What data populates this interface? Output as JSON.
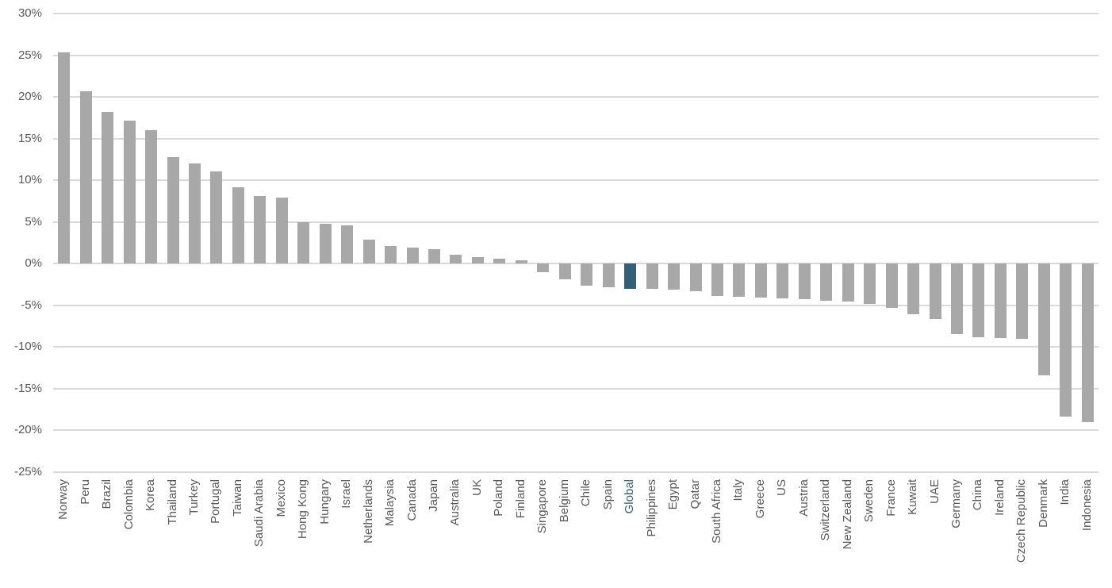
{
  "chart_data": {
    "type": "bar",
    "title": "",
    "xlabel": "",
    "ylabel": "",
    "categories": [
      "Norway",
      "Peru",
      "Brazil",
      "Colombia",
      "Korea",
      "Thailand",
      "Turkey",
      "Portugal",
      "Taiwan",
      "Saudi Arabia",
      "Mexico",
      "Hong Kong",
      "Hungary",
      "Israel",
      "Netherlands",
      "Malaysia",
      "Canada",
      "Japan",
      "Australia",
      "UK",
      "Poland",
      "Finland",
      "Singapore",
      "Belgium",
      "Chile",
      "Spain",
      "Global",
      "Philippines",
      "Egypt",
      "Qatar",
      "South Africa",
      "Italy",
      "Greece",
      "US",
      "Austria",
      "Switzerland",
      "New Zealand",
      "Sweden",
      "France",
      "Kuwait",
      "UAE",
      "Germany",
      "China",
      "Ireland",
      "Czech Republic",
      "Denmark",
      "India",
      "Indonesia"
    ],
    "values": [
      25.3,
      20.7,
      18.2,
      17.2,
      16.0,
      12.8,
      12.0,
      11.1,
      9.2,
      8.1,
      7.9,
      5.0,
      4.8,
      4.6,
      2.9,
      2.1,
      1.9,
      1.7,
      1.1,
      0.8,
      0.6,
      0.4,
      -1.0,
      -1.9,
      -2.6,
      -2.8,
      -3.0,
      -3.0,
      -3.1,
      -3.3,
      -3.9,
      -4.0,
      -4.1,
      -4.2,
      -4.3,
      -4.4,
      -4.5,
      -4.8,
      -5.3,
      -6.1,
      -6.6,
      -8.4,
      -8.8,
      -8.9,
      -9.0,
      -13.4,
      -18.3,
      -19.0
    ],
    "value_unit": "%",
    "highlight": {
      "category": "Global",
      "color": "#336077"
    },
    "bar_color": "#a8a8a8",
    "gridline_color": "#d9d9d9",
    "axis_text_color": "#595959",
    "ylim": [
      -25,
      30
    ],
    "y_tick_step": 5,
    "y_tick_labels": [
      "30%",
      "25%",
      "20%",
      "15%",
      "10%",
      "5%",
      "0%",
      "-5%",
      "-10%",
      "-15%",
      "-20%",
      "-25%"
    ],
    "grid": true,
    "legend_position": "none",
    "x_label_rotation_deg": 90
  }
}
